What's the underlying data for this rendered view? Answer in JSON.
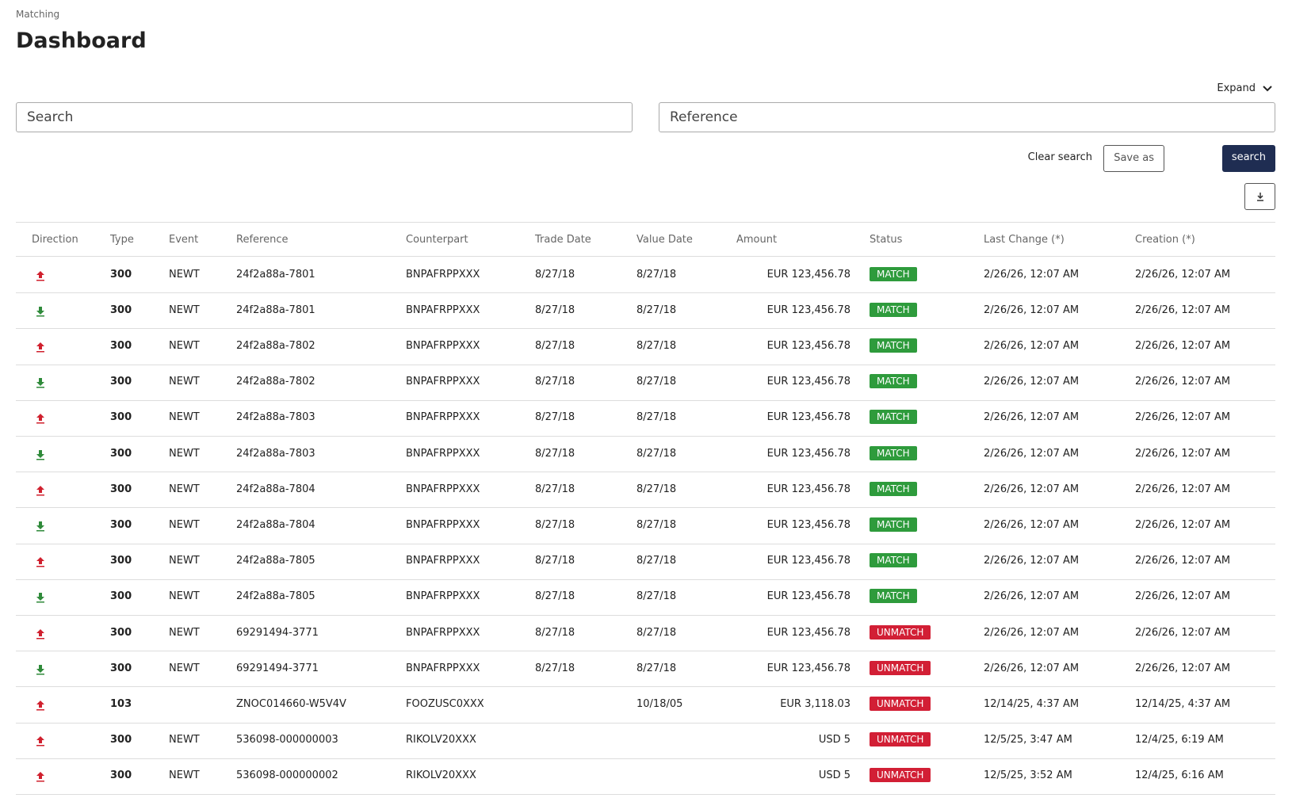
{
  "header": {
    "breadcrumb": "Matching",
    "title": "Dashboard",
    "expand": "Expand"
  },
  "search": {
    "search_placeholder": "Search",
    "reference_placeholder": "Reference",
    "clear": "Clear search",
    "save": "Save as",
    "submit": "search"
  },
  "direction_colors": {
    "up": "#d0202e",
    "down": "#2f8a3a"
  },
  "table": {
    "columns": [
      "Direction",
      "Type",
      "Event",
      "Reference",
      "Counterpart",
      "Trade Date",
      "Value Date",
      "Amount",
      "Status",
      "Last Change (*)",
      "Creation (*)"
    ],
    "rows": [
      {
        "direction": "up",
        "type": "300",
        "event": "NEWT",
        "reference": "24f2a88a-7801",
        "counterpart": "BNPAFRPPXXX",
        "trade_date": "8/27/18",
        "value_date": "8/27/18",
        "amount": "EUR 123,456.78",
        "status": "MATCH",
        "status_color": "#2e9b3c",
        "last_change": "2/26/26, 12:07 AM",
        "creation": "2/26/26, 12:07 AM"
      },
      {
        "direction": "down",
        "type": "300",
        "event": "NEWT",
        "reference": "24f2a88a-7801",
        "counterpart": "BNPAFRPPXXX",
        "trade_date": "8/27/18",
        "value_date": "8/27/18",
        "amount": "EUR 123,456.78",
        "status": "MATCH",
        "status_color": "#2e9b3c",
        "last_change": "2/26/26, 12:07 AM",
        "creation": "2/26/26, 12:07 AM"
      },
      {
        "direction": "up",
        "type": "300",
        "event": "NEWT",
        "reference": "24f2a88a-7802",
        "counterpart": "BNPAFRPPXXX",
        "trade_date": "8/27/18",
        "value_date": "8/27/18",
        "amount": "EUR 123,456.78",
        "status": "MATCH",
        "status_color": "#2e9b3c",
        "last_change": "2/26/26, 12:07 AM",
        "creation": "2/26/26, 12:07 AM"
      },
      {
        "direction": "down",
        "type": "300",
        "event": "NEWT",
        "reference": "24f2a88a-7802",
        "counterpart": "BNPAFRPPXXX",
        "trade_date": "8/27/18",
        "value_date": "8/27/18",
        "amount": "EUR 123,456.78",
        "status": "MATCH",
        "status_color": "#2e9b3c",
        "last_change": "2/26/26, 12:07 AM",
        "creation": "2/26/26, 12:07 AM"
      },
      {
        "direction": "up",
        "type": "300",
        "event": "NEWT",
        "reference": "24f2a88a-7803",
        "counterpart": "BNPAFRPPXXX",
        "trade_date": "8/27/18",
        "value_date": "8/27/18",
        "amount": "EUR 123,456.78",
        "status": "MATCH",
        "status_color": "#2e9b3c",
        "last_change": "2/26/26, 12:07 AM",
        "creation": "2/26/26, 12:07 AM"
      },
      {
        "direction": "down",
        "type": "300",
        "event": "NEWT",
        "reference": "24f2a88a-7803",
        "counterpart": "BNPAFRPPXXX",
        "trade_date": "8/27/18",
        "value_date": "8/27/18",
        "amount": "EUR 123,456.78",
        "status": "MATCH",
        "status_color": "#2e9b3c",
        "last_change": "2/26/26, 12:07 AM",
        "creation": "2/26/26, 12:07 AM"
      },
      {
        "direction": "up",
        "type": "300",
        "event": "NEWT",
        "reference": "24f2a88a-7804",
        "counterpart": "BNPAFRPPXXX",
        "trade_date": "8/27/18",
        "value_date": "8/27/18",
        "amount": "EUR 123,456.78",
        "status": "MATCH",
        "status_color": "#2e9b3c",
        "last_change": "2/26/26, 12:07 AM",
        "creation": "2/26/26, 12:07 AM"
      },
      {
        "direction": "down",
        "type": "300",
        "event": "NEWT",
        "reference": "24f2a88a-7804",
        "counterpart": "BNPAFRPPXXX",
        "trade_date": "8/27/18",
        "value_date": "8/27/18",
        "amount": "EUR 123,456.78",
        "status": "MATCH",
        "status_color": "#2e9b3c",
        "last_change": "2/26/26, 12:07 AM",
        "creation": "2/26/26, 12:07 AM"
      },
      {
        "direction": "up",
        "type": "300",
        "event": "NEWT",
        "reference": "24f2a88a-7805",
        "counterpart": "BNPAFRPPXXX",
        "trade_date": "8/27/18",
        "value_date": "8/27/18",
        "amount": "EUR 123,456.78",
        "status": "MATCH",
        "status_color": "#2e9b3c",
        "last_change": "2/26/26, 12:07 AM",
        "creation": "2/26/26, 12:07 AM"
      },
      {
        "direction": "down",
        "type": "300",
        "event": "NEWT",
        "reference": "24f2a88a-7805",
        "counterpart": "BNPAFRPPXXX",
        "trade_date": "8/27/18",
        "value_date": "8/27/18",
        "amount": "EUR 123,456.78",
        "status": "MATCH",
        "status_color": "#2e9b3c",
        "last_change": "2/26/26, 12:07 AM",
        "creation": "2/26/26, 12:07 AM"
      },
      {
        "direction": "up",
        "type": "300",
        "event": "NEWT",
        "reference": "69291494-3771",
        "counterpart": "BNPAFRPPXXX",
        "trade_date": "8/27/18",
        "value_date": "8/27/18",
        "amount": "EUR 123,456.78",
        "status": "UNMATCH",
        "status_color": "#d21f35",
        "last_change": "2/26/26, 12:07 AM",
        "creation": "2/26/26, 12:07 AM"
      },
      {
        "direction": "down",
        "type": "300",
        "event": "NEWT",
        "reference": "69291494-3771",
        "counterpart": "BNPAFRPPXXX",
        "trade_date": "8/27/18",
        "value_date": "8/27/18",
        "amount": "EUR 123,456.78",
        "status": "UNMATCH",
        "status_color": "#d21f35",
        "last_change": "2/26/26, 12:07 AM",
        "creation": "2/26/26, 12:07 AM"
      },
      {
        "direction": "up",
        "type": "103",
        "event": null,
        "reference": "ZNOC014660-W5V4V",
        "counterpart": "FOOZUSC0XXX",
        "trade_date": null,
        "value_date": "10/18/05",
        "amount": "EUR 3,118.03",
        "status": "UNMATCH",
        "status_color": "#d21f35",
        "last_change": "12/14/25, 4:37 AM",
        "creation": "12/14/25, 4:37 AM"
      },
      {
        "direction": "up",
        "type": "300",
        "event": "NEWT",
        "reference": "536098-000000003",
        "counterpart": "RIKOLV20XXX",
        "trade_date": null,
        "value_date": null,
        "amount": "USD 5",
        "status": "UNMATCH",
        "status_color": "#d21f35",
        "last_change": "12/5/25, 3:47 AM",
        "creation": "12/4/25, 6:19 AM"
      },
      {
        "direction": "up",
        "type": "300",
        "event": "NEWT",
        "reference": "536098-000000002",
        "counterpart": "RIKOLV20XXX",
        "trade_date": null,
        "value_date": null,
        "amount": "USD 5",
        "status": "UNMATCH",
        "status_color": "#d21f35",
        "last_change": "12/5/25, 3:52 AM",
        "creation": "12/4/25, 6:16 AM"
      }
    ]
  }
}
